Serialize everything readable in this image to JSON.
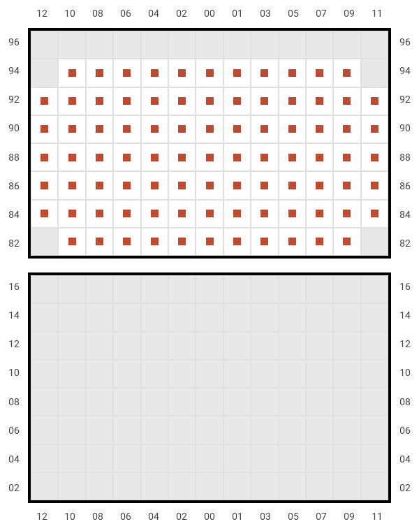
{
  "chart": {
    "type": "seat-map",
    "columns": [
      "12",
      "10",
      "08",
      "06",
      "04",
      "02",
      "00",
      "01",
      "03",
      "05",
      "07",
      "09",
      "11"
    ],
    "topPanel": {
      "rows": [
        "96",
        "94",
        "92",
        "90",
        "88",
        "86",
        "84",
        "82"
      ],
      "occupied": [
        [
          0,
          0,
          0,
          0,
          0,
          0,
          0,
          0,
          0,
          0,
          0,
          0,
          0
        ],
        [
          0,
          1,
          1,
          1,
          1,
          1,
          1,
          1,
          1,
          1,
          1,
          1,
          0
        ],
        [
          1,
          1,
          1,
          1,
          1,
          1,
          1,
          1,
          1,
          1,
          1,
          1,
          1
        ],
        [
          1,
          1,
          1,
          1,
          1,
          1,
          1,
          1,
          1,
          1,
          1,
          1,
          1
        ],
        [
          1,
          1,
          1,
          1,
          1,
          1,
          1,
          1,
          1,
          1,
          1,
          1,
          1
        ],
        [
          1,
          1,
          1,
          1,
          1,
          1,
          1,
          1,
          1,
          1,
          1,
          1,
          1
        ],
        [
          1,
          1,
          1,
          1,
          1,
          1,
          1,
          1,
          1,
          1,
          1,
          1,
          1
        ],
        [
          0,
          1,
          1,
          1,
          1,
          1,
          1,
          1,
          1,
          1,
          1,
          1,
          0
        ]
      ]
    },
    "bottomPanel": {
      "rows": [
        "16",
        "14",
        "12",
        "10",
        "08",
        "06",
        "04",
        "02"
      ],
      "occupied": [
        [
          0,
          0,
          0,
          0,
          0,
          0,
          0,
          0,
          0,
          0,
          0,
          0,
          0
        ],
        [
          0,
          0,
          0,
          0,
          0,
          0,
          0,
          0,
          0,
          0,
          0,
          0,
          0
        ],
        [
          0,
          0,
          0,
          0,
          0,
          0,
          0,
          0,
          0,
          0,
          0,
          0,
          0
        ],
        [
          0,
          0,
          0,
          0,
          0,
          0,
          0,
          0,
          0,
          0,
          0,
          0,
          0
        ],
        [
          0,
          0,
          0,
          0,
          0,
          0,
          0,
          0,
          0,
          0,
          0,
          0,
          0
        ],
        [
          0,
          0,
          0,
          0,
          0,
          0,
          0,
          0,
          0,
          0,
          0,
          0,
          0
        ],
        [
          0,
          0,
          0,
          0,
          0,
          0,
          0,
          0,
          0,
          0,
          0,
          0,
          0
        ],
        [
          0,
          0,
          0,
          0,
          0,
          0,
          0,
          0,
          0,
          0,
          0,
          0,
          0
        ]
      ]
    },
    "colors": {
      "seat": "#c0492e",
      "cellOn": "#ffffff",
      "cellOff": "#e8e8e8",
      "gridLine": "#e0e0e0",
      "border": "#000000",
      "label": "#444444"
    },
    "label_fontsize": 14
  }
}
